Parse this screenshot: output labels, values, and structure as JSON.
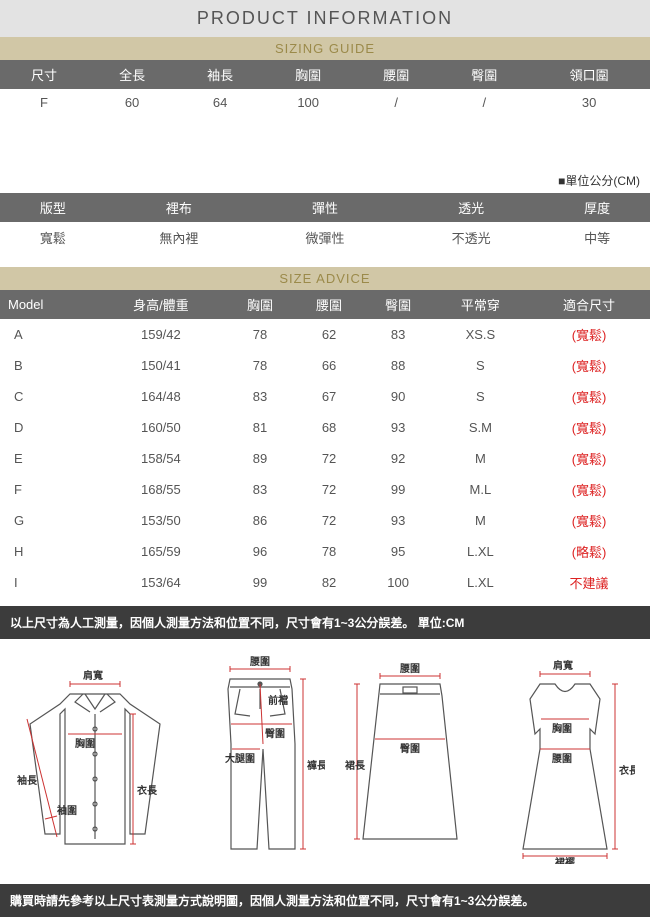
{
  "title": "PRODUCT INFORMATION",
  "sizing_guide": {
    "heading": "SIZING GUIDE",
    "columns": [
      "尺寸",
      "全長",
      "袖長",
      "胸圍",
      "腰圍",
      "臀圍",
      "領口圍"
    ],
    "rows": [
      [
        "F",
        "60",
        "64",
        "100",
        "/",
        "/",
        "30"
      ]
    ],
    "unit_note": "■單位公分(CM)"
  },
  "spec": {
    "columns": [
      "版型",
      "裡布",
      "彈性",
      "透光",
      "厚度"
    ],
    "rows": [
      [
        "寬鬆",
        "無內裡",
        "微彈性",
        "不透光",
        "中等"
      ]
    ]
  },
  "size_advice": {
    "heading": "SIZE ADVICE",
    "columns": [
      "Model",
      "身高/體重",
      "胸圍",
      "腰圍",
      "臀圍",
      "平常穿",
      "適合尺寸"
    ],
    "rows": [
      {
        "c": [
          "A",
          "159/42",
          "78",
          "62",
          "83",
          "XS.S"
        ],
        "fit": "(寬鬆)",
        "fit_color": "#d22"
      },
      {
        "c": [
          "B",
          "150/41",
          "78",
          "66",
          "88",
          "S"
        ],
        "fit": "(寬鬆)",
        "fit_color": "#d22"
      },
      {
        "c": [
          "C",
          "164/48",
          "83",
          "67",
          "90",
          "S"
        ],
        "fit": "(寬鬆)",
        "fit_color": "#d22"
      },
      {
        "c": [
          "D",
          "160/50",
          "81",
          "68",
          "93",
          "S.M"
        ],
        "fit": "(寬鬆)",
        "fit_color": "#d22"
      },
      {
        "c": [
          "E",
          "158/54",
          "89",
          "72",
          "92",
          "M"
        ],
        "fit": "(寬鬆)",
        "fit_color": "#d22"
      },
      {
        "c": [
          "F",
          "168/55",
          "83",
          "72",
          "99",
          "M.L"
        ],
        "fit": "(寬鬆)",
        "fit_color": "#d22"
      },
      {
        "c": [
          "G",
          "153/50",
          "86",
          "72",
          "93",
          "M"
        ],
        "fit": "(寬鬆)",
        "fit_color": "#d22"
      },
      {
        "c": [
          "H",
          "165/59",
          "96",
          "78",
          "95",
          "L.XL"
        ],
        "fit": "(略鬆)",
        "fit_color": "#d22"
      },
      {
        "c": [
          "I",
          "153/64",
          "99",
          "82",
          "100",
          "L.XL"
        ],
        "fit": "不建議",
        "fit_color": "#d22"
      }
    ]
  },
  "note1": "以上尺寸為人工測量，因個人測量方法和位置不同，尺寸會有1~3公分誤差。 單位:CM",
  "note2": "購買時請先參考以上尺寸表測量方式說明圖，因個人測量方法和位置不同，尺寸會有1~3公分誤差。",
  "diagram_labels": {
    "shirt": {
      "shoulder": "肩寬",
      "chest": "胸圍",
      "sleeve": "袖長",
      "cuff": "袖圍",
      "length": "衣長"
    },
    "pants": {
      "waist": "腰圍",
      "rise": "前襠",
      "hip": "臀圍",
      "thigh": "大腿圍",
      "length": "褲長"
    },
    "skirt": {
      "waist": "腰圍",
      "hip": "臀圍",
      "length": "裙長"
    },
    "dress": {
      "shoulder": "肩寬",
      "chest": "胸圍",
      "waist": "腰圍",
      "length": "衣長",
      "hem": "裙襬"
    }
  },
  "colors": {
    "title_bg": "#e3e3e3",
    "sub_bg": "#d1c7a6",
    "sub_fg": "#9b8a4a",
    "header_bg": "#6a6a6a",
    "header_fg": "#ffffff",
    "note_bg": "#3c3c3c",
    "diagram_stroke": "#555555",
    "diagram_measure": "#cc3333"
  }
}
